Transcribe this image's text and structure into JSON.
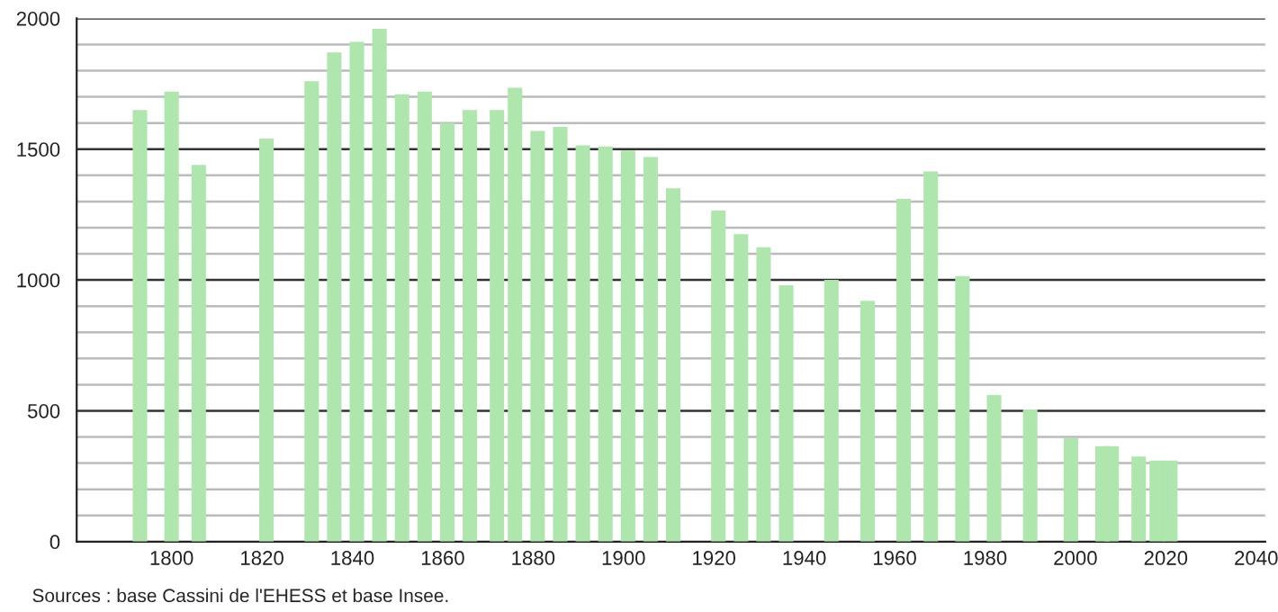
{
  "chart_data": {
    "type": "bar",
    "color": "#aee6ae",
    "x": [
      1793,
      1800,
      1806,
      1821,
      1831,
      1836,
      1841,
      1846,
      1851,
      1856,
      1861,
      1866,
      1872,
      1876,
      1881,
      1886,
      1891,
      1896,
      1901,
      1906,
      1911,
      1921,
      1926,
      1931,
      1936,
      1946,
      1954,
      1962,
      1968,
      1975,
      1982,
      1990,
      1999,
      2006,
      2008,
      2014,
      2018,
      2021
    ],
    "values": [
      1650,
      1720,
      1440,
      1540,
      1760,
      1870,
      1910,
      1960,
      1710,
      1720,
      1600,
      1650,
      1650,
      1735,
      1570,
      1585,
      1515,
      1510,
      1495,
      1470,
      1350,
      1265,
      1175,
      1125,
      980,
      1000,
      920,
      1310,
      1415,
      1015,
      560,
      505,
      395,
      365,
      365,
      325,
      310,
      310
    ],
    "xlim": [
      1779,
      2042
    ],
    "xticks": [
      1800,
      1820,
      1840,
      1860,
      1880,
      1900,
      1920,
      1940,
      1960,
      1980,
      2000,
      2020,
      2040
    ],
    "ylim": [
      0,
      2000
    ],
    "yticks": [
      0,
      {
        "value": 100,
        "label": null
      },
      {
        "value": 200,
        "label": null
      },
      {
        "value": 300,
        "label": null
      },
      {
        "value": 400,
        "label": null
      },
      500,
      {
        "value": 600,
        "label": null
      },
      {
        "value": 700,
        "label": null
      },
      {
        "value": 800,
        "label": null
      },
      {
        "value": 900,
        "label": null
      },
      1000,
      {
        "value": 1100,
        "label": null
      },
      {
        "value": 1200,
        "label": null
      },
      {
        "value": 1300,
        "label": null
      },
      {
        "value": 1400,
        "label": null
      },
      1500,
      {
        "value": 1600,
        "label": null
      },
      {
        "value": 1700,
        "label": null
      },
      {
        "value": 1800,
        "label": null
      },
      {
        "value": 1900,
        "label": null
      },
      2000
    ],
    "grid": "y",
    "annotations": [
      "Sources : base Cassini de l'EHESS et base Insee."
    ]
  }
}
